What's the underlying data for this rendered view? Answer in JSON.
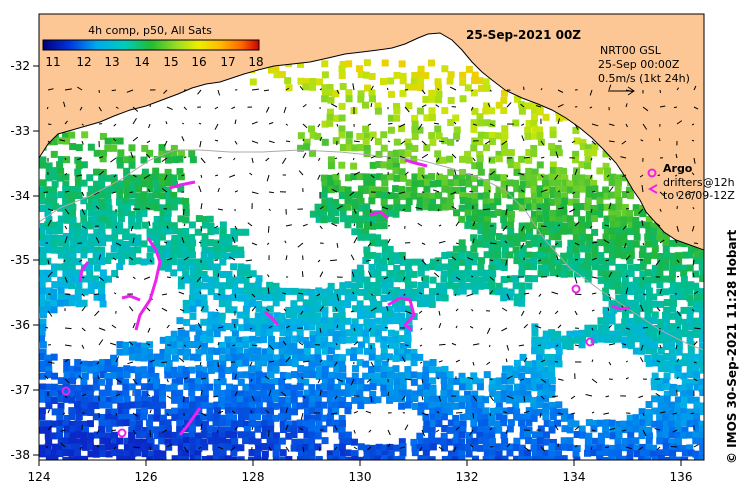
{
  "map": {
    "title": "25-Sep-2021 00Z",
    "colorbar": {
      "label": "4h comp, p50, All Sats",
      "ticks": [
        "11",
        "12",
        "13",
        "14",
        "15",
        "16",
        "17",
        "18"
      ],
      "min": 10.5,
      "max": 18.5
    },
    "current_legend": {
      "line1": "NRT00 GSL",
      "line2": "25-Sep 00:00Z",
      "line3": "0.5m/s (1kt 24h)"
    },
    "argo_legend": {
      "argo": "Argo",
      "drifters_line1": "drifters@12h",
      "drifters_line2": "to 26/09-12Z"
    },
    "credit": "© IMOS 30-Sep-2021 11:28 Hobart",
    "axes": {
      "x_ticks": [
        "124",
        "126",
        "128",
        "130",
        "132",
        "134",
        "136"
      ],
      "y_ticks": [
        "-32",
        "-33",
        "-34",
        "-35",
        "-36",
        "-37",
        "-38"
      ],
      "x_range": [
        124,
        136.5
      ],
      "y_range": [
        -38.1,
        -31.3
      ]
    },
    "colors": {
      "land": "#fdc795",
      "argo": "#ee22ee",
      "no_data": "#ffffff"
    }
  }
}
